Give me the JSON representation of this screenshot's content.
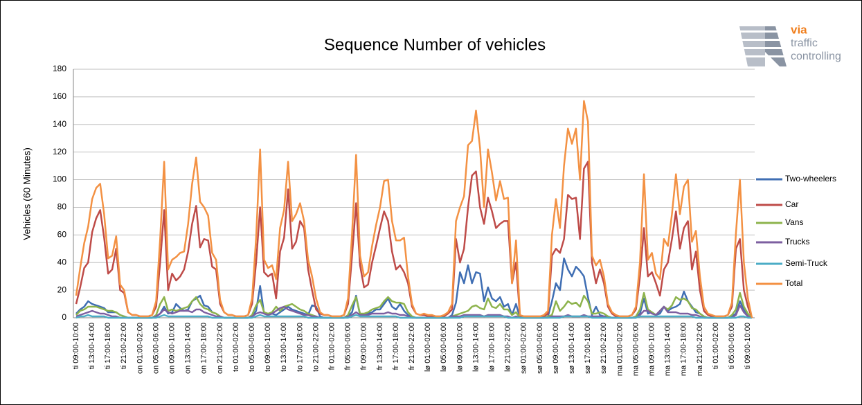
{
  "chart_data": {
    "type": "line",
    "title": "Sequence Number of vehicles",
    "ylabel": "Vehicles (60 Minutes)",
    "logo": {
      "brand": "via",
      "line1": "traffic",
      "line2": "controlling"
    },
    "ylim": [
      0,
      180
    ],
    "yticks": [
      0,
      20,
      40,
      60,
      80,
      100,
      120,
      140,
      160,
      180
    ],
    "grid": true,
    "legend": "right",
    "categories": [
      "ti 09:00-10:00",
      null,
      null,
      null,
      "ti 13:00-14:00",
      null,
      null,
      null,
      "ti 17:00-18:00",
      null,
      null,
      null,
      "ti 21:00-22:00",
      null,
      null,
      null,
      "on 01:00-02:00",
      null,
      null,
      null,
      "on 05:00-06:00",
      null,
      null,
      null,
      "on 09:00-10:00",
      null,
      null,
      null,
      "on 13:00-14:00",
      null,
      null,
      null,
      "on 17:00-18:00",
      null,
      null,
      null,
      "on 21:00-22:00",
      null,
      null,
      null,
      "to 01:00-02:00",
      null,
      null,
      null,
      "to 05:00-06:00",
      null,
      null,
      null,
      "to 09:00-10:00",
      null,
      null,
      null,
      "to 13:00-14:00",
      null,
      null,
      null,
      "to 17:00-18:00",
      null,
      null,
      null,
      "to 21:00-22:00",
      null,
      null,
      null,
      "fr 01:00-02:00",
      null,
      null,
      null,
      "fr 05:00-06:00",
      null,
      null,
      null,
      "fr 09:00-10:00",
      null,
      null,
      null,
      "fr 13:00-14:00",
      null,
      null,
      null,
      "fr 17:00-18:00",
      null,
      null,
      null,
      "fr 21:00-22:00",
      null,
      null,
      null,
      "lø 01:00-02:00",
      null,
      null,
      null,
      "lø 05:00-06:00",
      null,
      null,
      null,
      "lø 09:00-10:00",
      null,
      null,
      null,
      "lø 13:00-14:00",
      null,
      null,
      null,
      "lø 17:00-18:00",
      null,
      null,
      null,
      "lø 21:00-22:00",
      null,
      null,
      null,
      "sø 01:00-02:00",
      null,
      null,
      null,
      "sø 05:00-06:00",
      null,
      null,
      null,
      "sø 09:00-10:00",
      null,
      null,
      null,
      "sø 13:00-14:00",
      null,
      null,
      null,
      "sø 17:00-18:00",
      null,
      null,
      null,
      "sø 21:00-22:00",
      null,
      null,
      null,
      "ma 01:00-02:00",
      null,
      null,
      null,
      "ma 05:00-06:00",
      null,
      null,
      null,
      "ma 09:00-10:00",
      null,
      null,
      null,
      "ma 13:00-14:00",
      null,
      null,
      null,
      "ma 17:00-18:00",
      null,
      null,
      null,
      "ma 21:00-22:00",
      null,
      null,
      null,
      "ti 01:00-02:00",
      null,
      null,
      null,
      "ti 05:00-06:00",
      null,
      null,
      null,
      "ti 09:00-10:00",
      null
    ],
    "series": [
      {
        "name": "Two-wheelers",
        "color": "#3f6eb3",
        "values": [
          3,
          6,
          8,
          12,
          10,
          9,
          8,
          7,
          4,
          4,
          4,
          2,
          1,
          0,
          0,
          0,
          0,
          0,
          0,
          0,
          1,
          3,
          8,
          3,
          4,
          10,
          7,
          5,
          6,
          12,
          14,
          16,
          9,
          8,
          4,
          3,
          1,
          0,
          0,
          0,
          0,
          0,
          0,
          0,
          1,
          5,
          23,
          3,
          2,
          3,
          2,
          4,
          6,
          8,
          6,
          5,
          4,
          3,
          2,
          9,
          8,
          1,
          0,
          0,
          0,
          0,
          0,
          0,
          1,
          4,
          16,
          2,
          2,
          3,
          4,
          6,
          6,
          10,
          14,
          8,
          6,
          10,
          5,
          2,
          1,
          0,
          0,
          0,
          0,
          0,
          0,
          0,
          0,
          0,
          2,
          11,
          33,
          25,
          38,
          25,
          33,
          32,
          12,
          22,
          14,
          12,
          15,
          8,
          10,
          2,
          10,
          0,
          0,
          0,
          0,
          0,
          0,
          0,
          1,
          12,
          25,
          20,
          43,
          35,
          30,
          37,
          34,
          30,
          15,
          2,
          8,
          2,
          1,
          1,
          0,
          0,
          0,
          0,
          0,
          0,
          1,
          3,
          14,
          3,
          4,
          2,
          3,
          8,
          5,
          7,
          8,
          10,
          19,
          12,
          8,
          4,
          3,
          1,
          0,
          0,
          0,
          0,
          0,
          0,
          1,
          3,
          12,
          6,
          2,
          0
        ]
      },
      {
        "name": "Car",
        "color": "#be4b48",
        "values": [
          10,
          22,
          36,
          40,
          62,
          72,
          78,
          58,
          32,
          35,
          50,
          20,
          18,
          4,
          2,
          2,
          1,
          1,
          1,
          2,
          8,
          40,
          78,
          20,
          32,
          27,
          30,
          35,
          48,
          68,
          81,
          51,
          57,
          56,
          37,
          35,
          10,
          4,
          2,
          2,
          1,
          1,
          1,
          2,
          10,
          40,
          80,
          33,
          30,
          32,
          14,
          48,
          58,
          93,
          50,
          55,
          70,
          65,
          35,
          20,
          6,
          3,
          2,
          2,
          1,
          1,
          1,
          2,
          10,
          45,
          83,
          38,
          22,
          24,
          40,
          52,
          65,
          77,
          70,
          48,
          35,
          38,
          33,
          25,
          8,
          3,
          2,
          2,
          1,
          1,
          1,
          1,
          1,
          3,
          6,
          57,
          40,
          50,
          80,
          103,
          106,
          80,
          68,
          87,
          77,
          65,
          68,
          70,
          70,
          25,
          40,
          1,
          1,
          1,
          1,
          1,
          1,
          1,
          3,
          45,
          50,
          47,
          57,
          89,
          86,
          87,
          57,
          108,
          113,
          40,
          25,
          35,
          25,
          8,
          3,
          1,
          1,
          1,
          1,
          2,
          6,
          30,
          65,
          30,
          33,
          25,
          16,
          35,
          40,
          57,
          77,
          50,
          65,
          70,
          35,
          48,
          20,
          5,
          2,
          1,
          1,
          1,
          1,
          2,
          8,
          50,
          57,
          20,
          8,
          0
        ]
      },
      {
        "name": "Vans",
        "color": "#8db34c",
        "values": [
          2,
          5,
          6,
          8,
          8,
          8,
          7,
          6,
          5,
          5,
          4,
          2,
          1,
          0,
          0,
          0,
          0,
          0,
          0,
          0,
          2,
          10,
          15,
          5,
          6,
          5,
          6,
          7,
          8,
          12,
          15,
          10,
          7,
          6,
          4,
          3,
          1,
          0,
          0,
          0,
          0,
          0,
          0,
          0,
          2,
          9,
          13,
          4,
          3,
          4,
          8,
          5,
          8,
          9,
          10,
          8,
          6,
          5,
          3,
          2,
          1,
          0,
          0,
          0,
          0,
          0,
          0,
          0,
          2,
          9,
          15,
          3,
          3,
          4,
          6,
          7,
          8,
          12,
          15,
          12,
          11,
          11,
          10,
          4,
          1,
          0,
          0,
          0,
          0,
          0,
          0,
          0,
          0,
          0,
          1,
          2,
          3,
          4,
          5,
          8,
          9,
          7,
          6,
          14,
          8,
          7,
          10,
          6,
          6,
          2,
          4,
          0,
          0,
          0,
          0,
          0,
          0,
          0,
          1,
          2,
          12,
          5,
          8,
          12,
          10,
          11,
          8,
          16,
          12,
          3,
          3,
          4,
          3,
          1,
          0,
          0,
          0,
          0,
          0,
          0,
          1,
          6,
          18,
          6,
          4,
          2,
          5,
          8,
          6,
          9,
          15,
          13,
          14,
          12,
          7,
          6,
          3,
          1,
          0,
          0,
          0,
          0,
          0,
          0,
          2,
          6,
          18,
          8,
          3,
          0
        ]
      },
      {
        "name": "Trucks",
        "color": "#7d5fa0",
        "values": [
          1,
          2,
          3,
          4,
          5,
          4,
          3,
          3,
          2,
          1,
          1,
          0,
          0,
          0,
          0,
          0,
          0,
          0,
          0,
          0,
          1,
          3,
          6,
          4,
          3,
          4,
          5,
          5,
          5,
          4,
          6,
          6,
          4,
          3,
          2,
          1,
          1,
          0,
          0,
          0,
          0,
          0,
          0,
          0,
          1,
          3,
          4,
          3,
          2,
          3,
          5,
          7,
          8,
          6,
          5,
          4,
          3,
          2,
          2,
          1,
          1,
          0,
          0,
          0,
          0,
          0,
          0,
          0,
          1,
          2,
          4,
          2,
          2,
          2,
          3,
          3,
          3,
          3,
          4,
          3,
          3,
          2,
          2,
          1,
          0,
          0,
          0,
          0,
          0,
          0,
          0,
          0,
          0,
          0,
          1,
          1,
          1,
          2,
          2,
          2,
          2,
          2,
          1,
          2,
          2,
          2,
          2,
          1,
          1,
          0,
          1,
          0,
          0,
          0,
          0,
          0,
          0,
          0,
          0,
          1,
          1,
          1,
          1,
          2,
          1,
          1,
          1,
          2,
          1,
          1,
          1,
          1,
          1,
          0,
          0,
          0,
          0,
          0,
          0,
          0,
          0,
          2,
          5,
          5,
          3,
          2,
          5,
          8,
          4,
          4,
          4,
          3,
          3,
          3,
          2,
          2,
          1,
          0,
          0,
          0,
          0,
          0,
          0,
          0,
          0,
          2,
          9,
          4,
          1,
          0
        ]
      },
      {
        "name": "Semi-Truck",
        "color": "#4bacc6",
        "values": [
          0,
          1,
          1,
          2,
          1,
          1,
          1,
          1,
          0,
          0,
          0,
          0,
          0,
          0,
          0,
          0,
          0,
          0,
          0,
          0,
          0,
          1,
          2,
          1,
          1,
          1,
          1,
          1,
          1,
          1,
          1,
          1,
          1,
          1,
          0,
          0,
          0,
          0,
          0,
          0,
          0,
          0,
          0,
          0,
          0,
          1,
          2,
          1,
          1,
          1,
          1,
          1,
          1,
          1,
          1,
          1,
          1,
          1,
          0,
          0,
          0,
          0,
          0,
          0,
          0,
          0,
          0,
          0,
          0,
          1,
          2,
          1,
          1,
          1,
          1,
          1,
          1,
          1,
          1,
          1,
          1,
          0,
          0,
          0,
          0,
          0,
          0,
          0,
          0,
          0,
          0,
          0,
          0,
          0,
          0,
          0,
          0,
          1,
          1,
          1,
          1,
          1,
          1,
          1,
          1,
          1,
          1,
          1,
          0,
          0,
          0,
          0,
          0,
          0,
          0,
          0,
          0,
          0,
          0,
          0,
          0,
          0,
          1,
          1,
          1,
          1,
          1,
          1,
          1,
          0,
          0,
          0,
          0,
          0,
          0,
          0,
          0,
          0,
          0,
          0,
          0,
          1,
          1,
          1,
          1,
          1,
          1,
          1,
          1,
          1,
          1,
          1,
          1,
          1,
          1,
          0,
          0,
          0,
          0,
          0,
          0,
          0,
          0,
          0,
          0,
          0,
          1,
          1,
          0,
          0
        ]
      },
      {
        "name": "Total",
        "color": "#f39143",
        "values": [
          16,
          36,
          54,
          66,
          86,
          94,
          97,
          75,
          43,
          45,
          59,
          24,
          20,
          4,
          2,
          2,
          1,
          1,
          1,
          2,
          12,
          57,
          113,
          35,
          42,
          44,
          47,
          48,
          68,
          97,
          116,
          84,
          80,
          74,
          47,
          42,
          13,
          4,
          2,
          2,
          1,
          1,
          1,
          2,
          14,
          58,
          122,
          42,
          36,
          38,
          28,
          65,
          78,
          113,
          70,
          75,
          83,
          70,
          42,
          30,
          14,
          4,
          2,
          2,
          1,
          1,
          1,
          2,
          14,
          61,
          118,
          45,
          30,
          33,
          52,
          67,
          80,
          99,
          100,
          70,
          56,
          56,
          58,
          30,
          10,
          3,
          2,
          3,
          2,
          2,
          1,
          1,
          2,
          4,
          10,
          70,
          80,
          88,
          125,
          128,
          150,
          123,
          80,
          122,
          105,
          85,
          99,
          86,
          87,
          25,
          56,
          2,
          1,
          1,
          1,
          1,
          1,
          2,
          5,
          60,
          86,
          65,
          110,
          137,
          126,
          137,
          100,
          157,
          142,
          45,
          38,
          42,
          30,
          10,
          4,
          2,
          1,
          1,
          1,
          2,
          8,
          40,
          104,
          42,
          47,
          32,
          28,
          57,
          52,
          75,
          104,
          75,
          95,
          100,
          55,
          63,
          30,
          8,
          3,
          2,
          1,
          1,
          1,
          2,
          11,
          61,
          100,
          40,
          14,
          0
        ]
      }
    ]
  }
}
